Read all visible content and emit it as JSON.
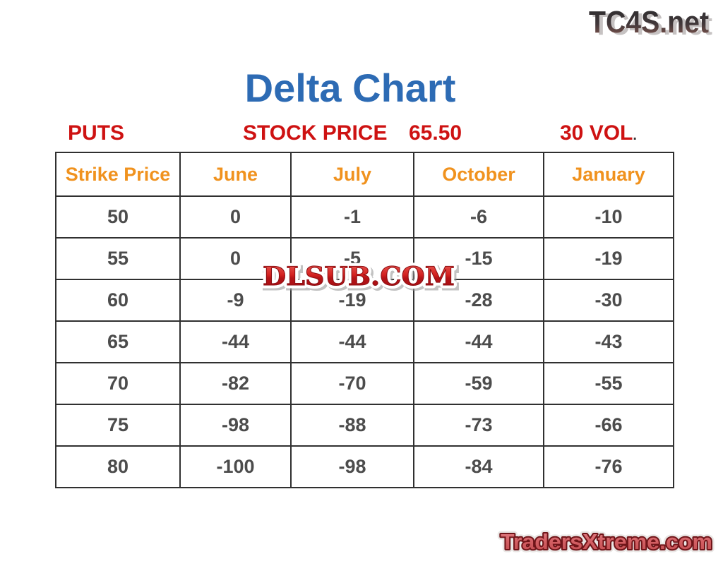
{
  "branding": {
    "top_logo": "TC4S.net",
    "watermark": "DLSUB.COM",
    "bottom_logo": "TradersXtreme.com"
  },
  "header": {
    "title": "Delta Chart",
    "title_color": "#2d6bb4"
  },
  "subtitle": {
    "puts_label": "PUTS",
    "stock_price_label": "STOCK PRICE",
    "stock_price_value": "65.50",
    "vol_label": "30 VOL",
    "vol_period": ".",
    "color": "#ce1212"
  },
  "chart_data": {
    "type": "table",
    "title": "Delta Chart",
    "option_type": "PUTS",
    "stock_price": 65.5,
    "volatility": 30,
    "columns": [
      "Strike Price",
      "June",
      "July",
      "October",
      "January"
    ],
    "rows": [
      [
        "50",
        "0",
        "-1",
        "-6",
        "-10"
      ],
      [
        "55",
        "0",
        "-5",
        "-15",
        "-19"
      ],
      [
        "60",
        "-9",
        "-19",
        "-28",
        "-30"
      ],
      [
        "65",
        "-44",
        "-44",
        "-44",
        "-43"
      ],
      [
        "70",
        "-82",
        "-70",
        "-59",
        "-55"
      ],
      [
        "75",
        "-98",
        "-88",
        "-73",
        "-66"
      ],
      [
        "80",
        "-100",
        "-98",
        "-84",
        "-76"
      ]
    ],
    "header_color": "#f0921e",
    "value_color": "#4c4c4c",
    "border_color": "#303030"
  }
}
